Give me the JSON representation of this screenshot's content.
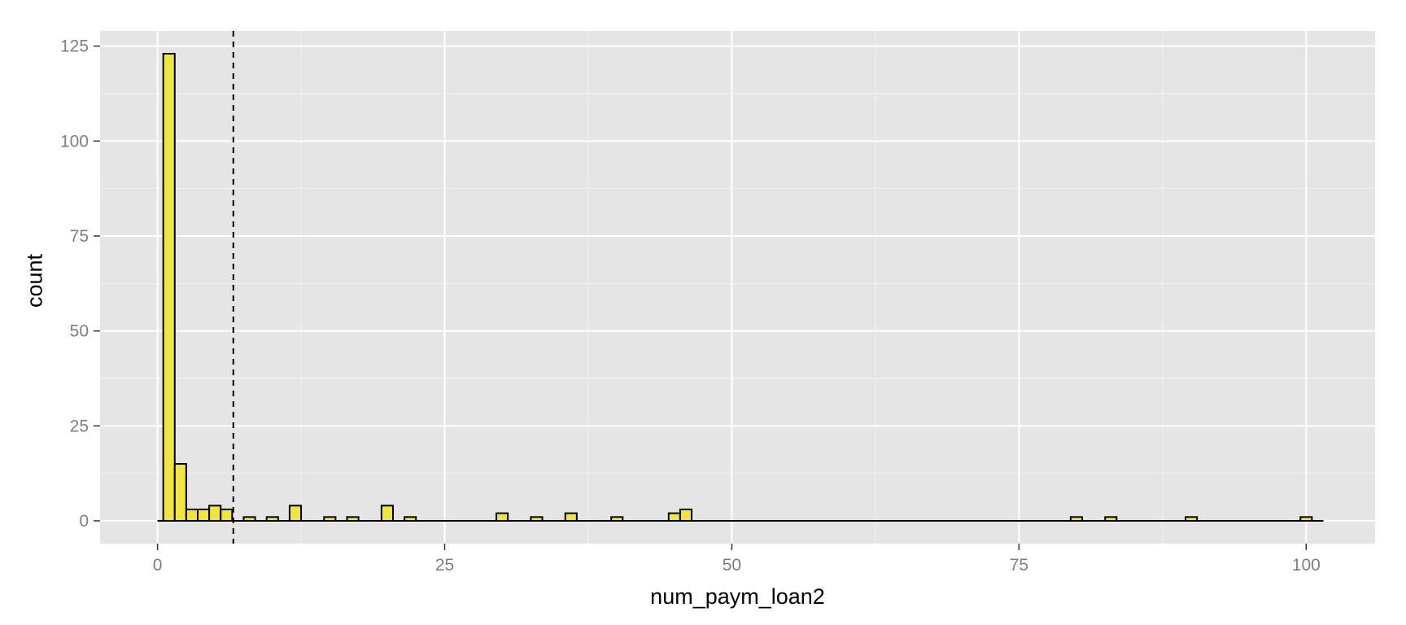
{
  "chart_data": {
    "type": "bar",
    "subtype": "histogram",
    "title": "",
    "xlabel": "num_paym_loan2",
    "ylabel": "count",
    "xlim": [
      -5,
      106
    ],
    "ylim": [
      -6,
      129
    ],
    "x_ticks": [
      0,
      25,
      50,
      75,
      100
    ],
    "x_tick_labels": [
      "0",
      "25",
      "50",
      "75",
      "100"
    ],
    "y_ticks": [
      0,
      25,
      50,
      75,
      100,
      125
    ],
    "y_tick_labels": [
      "0",
      "25",
      "50",
      "75",
      "100",
      "125"
    ],
    "grid": true,
    "bin_width": 1,
    "bar_fill": "#F0E442",
    "bar_outline": "#000000",
    "panel_background": "#E5E5E5",
    "grid_color": "#FFFFFF",
    "baseline_range": [
      0,
      101
    ],
    "bins": [
      {
        "x": 1,
        "count": 123
      },
      {
        "x": 2,
        "count": 15
      },
      {
        "x": 3,
        "count": 3
      },
      {
        "x": 4,
        "count": 3
      },
      {
        "x": 5,
        "count": 4
      },
      {
        "x": 6,
        "count": 3
      },
      {
        "x": 8,
        "count": 1
      },
      {
        "x": 10,
        "count": 1
      },
      {
        "x": 12,
        "count": 4
      },
      {
        "x": 15,
        "count": 1
      },
      {
        "x": 17,
        "count": 1
      },
      {
        "x": 20,
        "count": 4
      },
      {
        "x": 22,
        "count": 1
      },
      {
        "x": 30,
        "count": 2
      },
      {
        "x": 33,
        "count": 1
      },
      {
        "x": 36,
        "count": 2
      },
      {
        "x": 40,
        "count": 1
      },
      {
        "x": 45,
        "count": 2
      },
      {
        "x": 46,
        "count": 3
      },
      {
        "x": 80,
        "count": 1
      },
      {
        "x": 83,
        "count": 1
      },
      {
        "x": 90,
        "count": 1
      },
      {
        "x": 100,
        "count": 1
      }
    ],
    "reference_line": {
      "x": 6.6,
      "style": "dashed",
      "color": "#000000"
    }
  }
}
